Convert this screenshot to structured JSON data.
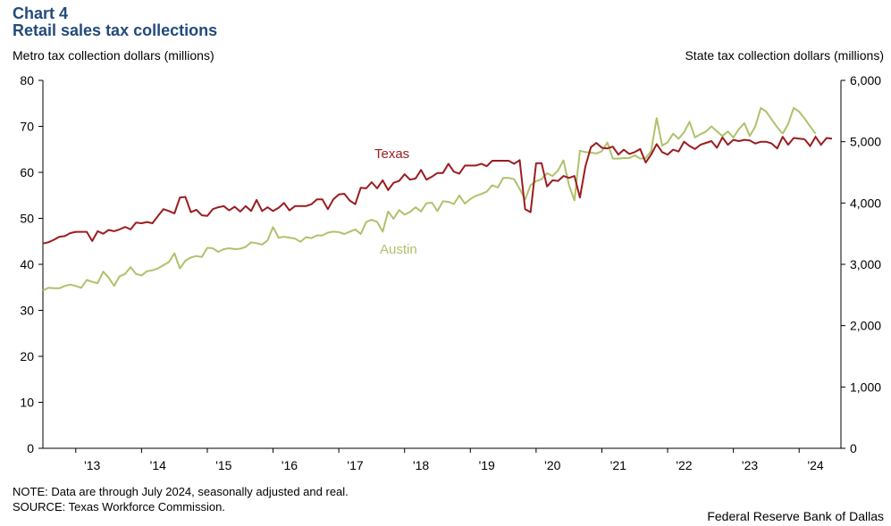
{
  "header": {
    "chart_label": "Chart 4",
    "title": "Retail sales tax collections"
  },
  "footer": {
    "note": "NOTE: Data are through July 2024, seasonally adjusted and real.",
    "source": "SOURCE: Texas Workforce Commission.",
    "credit": "Federal Reserve Bank of Dallas"
  },
  "colors": {
    "title": "#234a7c",
    "texas": "#9b1c1f",
    "austin": "#afc26b",
    "axis": "#000000"
  },
  "chart_data": {
    "type": "line",
    "left_axis": {
      "label": "Metro tax collection dollars (millions)",
      "range": [
        0,
        80
      ],
      "ticks": [
        "0",
        "10",
        "20",
        "30",
        "40",
        "50",
        "60",
        "70",
        "80"
      ]
    },
    "right_axis": {
      "label": "State tax collection dollars (millions)",
      "range": [
        0,
        6000
      ],
      "ticks": [
        "0",
        "1,000",
        "2,000",
        "3,000",
        "4,000",
        "5,000",
        "6,000"
      ]
    },
    "x_axis": {
      "start": "2012-07",
      "end": "2024-07",
      "tick_labels": [
        "'13",
        "'14",
        "'15",
        "'16",
        "'17",
        "'18",
        "'19",
        "'20",
        "'21",
        "'22",
        "'23",
        "'24"
      ]
    },
    "grid": false,
    "series": [
      {
        "name": "Texas",
        "axis": "right",
        "points": [
          [
            "2012-07",
            3340
          ],
          [
            "2012-08",
            3360
          ],
          [
            "2012-09",
            3400
          ],
          [
            "2012-10",
            3450
          ],
          [
            "2012-11",
            3460
          ],
          [
            "2012-12",
            3510
          ],
          [
            "2013-01",
            3530
          ],
          [
            "2013-02",
            3530
          ],
          [
            "2013-03",
            3530
          ],
          [
            "2013-04",
            3380
          ],
          [
            "2013-05",
            3540
          ],
          [
            "2013-06",
            3500
          ],
          [
            "2013-07",
            3560
          ],
          [
            "2013-08",
            3540
          ],
          [
            "2013-09",
            3570
          ],
          [
            "2013-10",
            3610
          ],
          [
            "2013-11",
            3570
          ],
          [
            "2013-12",
            3680
          ],
          [
            "2014-01",
            3670
          ],
          [
            "2014-02",
            3690
          ],
          [
            "2014-03",
            3670
          ],
          [
            "2014-04",
            3790
          ],
          [
            "2014-05",
            3900
          ],
          [
            "2014-06",
            3870
          ],
          [
            "2014-07",
            3830
          ],
          [
            "2014-08",
            4090
          ],
          [
            "2014-09",
            4100
          ],
          [
            "2014-10",
            3850
          ],
          [
            "2014-11",
            3890
          ],
          [
            "2014-12",
            3800
          ],
          [
            "2015-01",
            3790
          ],
          [
            "2015-02",
            3900
          ],
          [
            "2015-03",
            3930
          ],
          [
            "2015-04",
            3950
          ],
          [
            "2015-05",
            3880
          ],
          [
            "2015-06",
            3940
          ],
          [
            "2015-07",
            3860
          ],
          [
            "2015-08",
            3950
          ],
          [
            "2015-09",
            3870
          ],
          [
            "2015-10",
            4050
          ],
          [
            "2015-11",
            3870
          ],
          [
            "2015-12",
            3930
          ],
          [
            "2016-01",
            3870
          ],
          [
            "2016-02",
            3920
          ],
          [
            "2016-03",
            4000
          ],
          [
            "2016-04",
            3880
          ],
          [
            "2016-05",
            3950
          ],
          [
            "2016-06",
            3950
          ],
          [
            "2016-07",
            3950
          ],
          [
            "2016-08",
            3980
          ],
          [
            "2016-09",
            4060
          ],
          [
            "2016-10",
            4060
          ],
          [
            "2016-11",
            3900
          ],
          [
            "2016-12",
            4060
          ],
          [
            "2017-01",
            4140
          ],
          [
            "2017-02",
            4150
          ],
          [
            "2017-03",
            4040
          ],
          [
            "2017-04",
            3980
          ],
          [
            "2017-05",
            4250
          ],
          [
            "2017-06",
            4240
          ],
          [
            "2017-07",
            4340
          ],
          [
            "2017-08",
            4240
          ],
          [
            "2017-09",
            4370
          ],
          [
            "2017-10",
            4210
          ],
          [
            "2017-11",
            4330
          ],
          [
            "2017-12",
            4360
          ],
          [
            "2018-01",
            4470
          ],
          [
            "2018-02",
            4380
          ],
          [
            "2018-03",
            4400
          ],
          [
            "2018-04",
            4540
          ],
          [
            "2018-05",
            4380
          ],
          [
            "2018-06",
            4430
          ],
          [
            "2018-07",
            4490
          ],
          [
            "2018-08",
            4490
          ],
          [
            "2018-09",
            4640
          ],
          [
            "2018-10",
            4510
          ],
          [
            "2018-11",
            4480
          ],
          [
            "2018-12",
            4610
          ],
          [
            "2019-01",
            4610
          ],
          [
            "2019-02",
            4610
          ],
          [
            "2019-03",
            4640
          ],
          [
            "2019-04",
            4600
          ],
          [
            "2019-05",
            4690
          ],
          [
            "2019-06",
            4690
          ],
          [
            "2019-07",
            4690
          ],
          [
            "2019-08",
            4690
          ],
          [
            "2019-09",
            4640
          ],
          [
            "2019-10",
            4700
          ],
          [
            "2019-11",
            3900
          ],
          [
            "2019-12",
            3850
          ],
          [
            "2020-01",
            4650
          ],
          [
            "2020-02",
            4650
          ],
          [
            "2020-03",
            4270
          ],
          [
            "2020-04",
            4370
          ],
          [
            "2020-05",
            4360
          ],
          [
            "2020-06",
            4440
          ],
          [
            "2020-07",
            4410
          ],
          [
            "2020-08",
            4440
          ],
          [
            "2020-09",
            4090
          ],
          [
            "2020-10",
            4600
          ],
          [
            "2020-11",
            4910
          ],
          [
            "2020-12",
            4980
          ],
          [
            "2021-01",
            4900
          ],
          [
            "2021-02",
            4890
          ],
          [
            "2021-03",
            4920
          ],
          [
            "2021-04",
            4790
          ],
          [
            "2021-05",
            4870
          ],
          [
            "2021-06",
            4800
          ],
          [
            "2021-07",
            4830
          ],
          [
            "2021-08",
            4880
          ],
          [
            "2021-09",
            4660
          ],
          [
            "2021-10",
            4790
          ],
          [
            "2021-11",
            4960
          ],
          [
            "2021-12",
            4830
          ],
          [
            "2022-01",
            4790
          ],
          [
            "2022-02",
            4870
          ],
          [
            "2022-03",
            4840
          ],
          [
            "2022-04",
            5000
          ],
          [
            "2022-05",
            4930
          ],
          [
            "2022-06",
            4880
          ],
          [
            "2022-07",
            4950
          ],
          [
            "2022-08",
            4980
          ],
          [
            "2022-09",
            5010
          ],
          [
            "2022-10",
            4900
          ],
          [
            "2022-11",
            5070
          ],
          [
            "2022-12",
            4950
          ],
          [
            "2023-01",
            5030
          ],
          [
            "2023-02",
            5010
          ],
          [
            "2023-03",
            5030
          ],
          [
            "2023-04",
            5020
          ],
          [
            "2023-05",
            4970
          ],
          [
            "2023-06",
            5000
          ],
          [
            "2023-07",
            5000
          ],
          [
            "2023-08",
            4970
          ],
          [
            "2023-09",
            4890
          ],
          [
            "2023-10",
            5080
          ],
          [
            "2023-11",
            4950
          ],
          [
            "2023-12",
            5060
          ],
          [
            "2024-01",
            5050
          ],
          [
            "2024-02",
            5040
          ],
          [
            "2024-03",
            null
          ],
          [
            "2024-04",
            null
          ],
          [
            "2024-05",
            null
          ],
          [
            "2024-06",
            null
          ],
          [
            "2024-07",
            null
          ]
        ]
      },
      {
        "name": "Austin",
        "axis": "left",
        "points": [
          [
            "2012-07",
            34.3
          ],
          [
            "2012-08",
            34.9
          ],
          [
            "2012-09",
            34.8
          ],
          [
            "2012-10",
            34.8
          ],
          [
            "2012-11",
            35.3
          ],
          [
            "2012-12",
            35.6
          ],
          [
            "2013-01",
            35.3
          ],
          [
            "2013-02",
            34.9
          ],
          [
            "2013-03",
            36.6
          ],
          [
            "2013-04",
            36.2
          ],
          [
            "2013-05",
            35.9
          ],
          [
            "2013-06",
            38.4
          ],
          [
            "2013-07",
            37.1
          ],
          [
            "2013-08",
            35.3
          ],
          [
            "2013-09",
            37.4
          ],
          [
            "2013-10",
            37.9
          ],
          [
            "2013-11",
            39.4
          ],
          [
            "2013-12",
            37.9
          ],
          [
            "2014-01",
            37.6
          ],
          [
            "2014-02",
            38.5
          ],
          [
            "2014-03",
            38.7
          ],
          [
            "2014-04",
            39.1
          ],
          [
            "2014-05",
            39.8
          ],
          [
            "2014-06",
            40.5
          ],
          [
            "2014-07",
            42.4
          ],
          [
            "2014-08",
            39.1
          ],
          [
            "2014-09",
            40.8
          ],
          [
            "2014-10",
            41.5
          ],
          [
            "2014-11",
            41.8
          ],
          [
            "2014-12",
            41.6
          ],
          [
            "2015-01",
            43.6
          ],
          [
            "2015-02",
            43.5
          ],
          [
            "2015-03",
            42.7
          ],
          [
            "2015-04",
            43.3
          ],
          [
            "2015-05",
            43.5
          ],
          [
            "2015-06",
            43.3
          ],
          [
            "2015-07",
            43.4
          ],
          [
            "2015-08",
            43.8
          ],
          [
            "2015-09",
            44.8
          ],
          [
            "2015-10",
            44.6
          ],
          [
            "2015-11",
            44.3
          ],
          [
            "2015-12",
            45.2
          ],
          [
            "2016-01",
            48.1
          ],
          [
            "2016-02",
            45.8
          ],
          [
            "2016-03",
            46.0
          ],
          [
            "2016-04",
            45.8
          ],
          [
            "2016-05",
            45.6
          ],
          [
            "2016-06",
            44.9
          ],
          [
            "2016-07",
            45.9
          ],
          [
            "2016-08",
            45.7
          ],
          [
            "2016-09",
            46.3
          ],
          [
            "2016-10",
            46.3
          ],
          [
            "2016-11",
            46.9
          ],
          [
            "2016-12",
            47.1
          ],
          [
            "2017-01",
            47.0
          ],
          [
            "2017-02",
            46.6
          ],
          [
            "2017-03",
            47.1
          ],
          [
            "2017-04",
            47.6
          ],
          [
            "2017-05",
            46.6
          ],
          [
            "2017-06",
            49.2
          ],
          [
            "2017-07",
            49.7
          ],
          [
            "2017-08",
            49.2
          ],
          [
            "2017-09",
            47.1
          ],
          [
            "2017-10",
            51.5
          ],
          [
            "2017-11",
            49.9
          ],
          [
            "2017-12",
            51.8
          ],
          [
            "2018-01",
            50.8
          ],
          [
            "2018-02",
            51.4
          ],
          [
            "2018-03",
            52.4
          ],
          [
            "2018-04",
            51.5
          ],
          [
            "2018-05",
            53.3
          ],
          [
            "2018-06",
            53.4
          ],
          [
            "2018-07",
            51.6
          ],
          [
            "2018-08",
            53.7
          ],
          [
            "2018-09",
            53.6
          ],
          [
            "2018-10",
            53.1
          ],
          [
            "2018-11",
            55.0
          ],
          [
            "2018-12",
            53.2
          ],
          [
            "2019-01",
            54.2
          ],
          [
            "2019-02",
            54.9
          ],
          [
            "2019-03",
            55.3
          ],
          [
            "2019-04",
            55.8
          ],
          [
            "2019-05",
            57.2
          ],
          [
            "2019-06",
            56.7
          ],
          [
            "2019-07",
            58.8
          ],
          [
            "2019-08",
            58.8
          ],
          [
            "2019-09",
            58.5
          ],
          [
            "2019-10",
            56.4
          ],
          [
            "2019-11",
            54.1
          ],
          [
            "2019-12",
            57.2
          ],
          [
            "2020-01",
            58.1
          ],
          [
            "2020-02",
            58.5
          ],
          [
            "2020-03",
            59.8
          ],
          [
            "2020-04",
            59.2
          ],
          [
            "2020-05",
            60.4
          ],
          [
            "2020-06",
            62.6
          ],
          [
            "2020-07",
            57.2
          ],
          [
            "2020-08",
            53.9
          ],
          [
            "2020-09",
            64.7
          ],
          [
            "2020-10",
            64.4
          ],
          [
            "2020-11",
            64.3
          ],
          [
            "2020-12",
            64.1
          ],
          [
            "2021-01",
            64.6
          ],
          [
            "2021-02",
            66.5
          ],
          [
            "2021-03",
            63.0
          ],
          [
            "2021-04",
            63.0
          ],
          [
            "2021-05",
            63.1
          ],
          [
            "2021-06",
            63.1
          ],
          [
            "2021-07",
            63.7
          ],
          [
            "2021-08",
            63.0
          ],
          [
            "2021-09",
            63.1
          ],
          [
            "2021-10",
            64.6
          ],
          [
            "2021-11",
            71.8
          ],
          [
            "2021-12",
            65.8
          ],
          [
            "2022-01",
            66.5
          ],
          [
            "2022-02",
            68.4
          ],
          [
            "2022-03",
            67.3
          ],
          [
            "2022-04",
            68.7
          ],
          [
            "2022-05",
            71.0
          ],
          [
            "2022-06",
            67.6
          ],
          [
            "2022-07",
            68.3
          ],
          [
            "2022-08",
            68.9
          ],
          [
            "2022-09",
            70.0
          ],
          [
            "2022-10",
            68.9
          ],
          [
            "2022-11",
            67.9
          ],
          [
            "2022-12",
            68.9
          ],
          [
            "2023-01",
            67.6
          ],
          [
            "2023-02",
            69.4
          ],
          [
            "2023-03",
            70.7
          ],
          [
            "2023-04",
            67.9
          ],
          [
            "2023-05",
            70.0
          ],
          [
            "2023-06",
            74.0
          ],
          [
            "2023-07",
            73.2
          ],
          [
            "2023-08",
            71.5
          ],
          [
            "2023-09",
            69.8
          ],
          [
            "2023-10",
            68.4
          ]
        ]
      }
    ],
    "annotations": [
      "Texas",
      "Austin"
    ]
  }
}
